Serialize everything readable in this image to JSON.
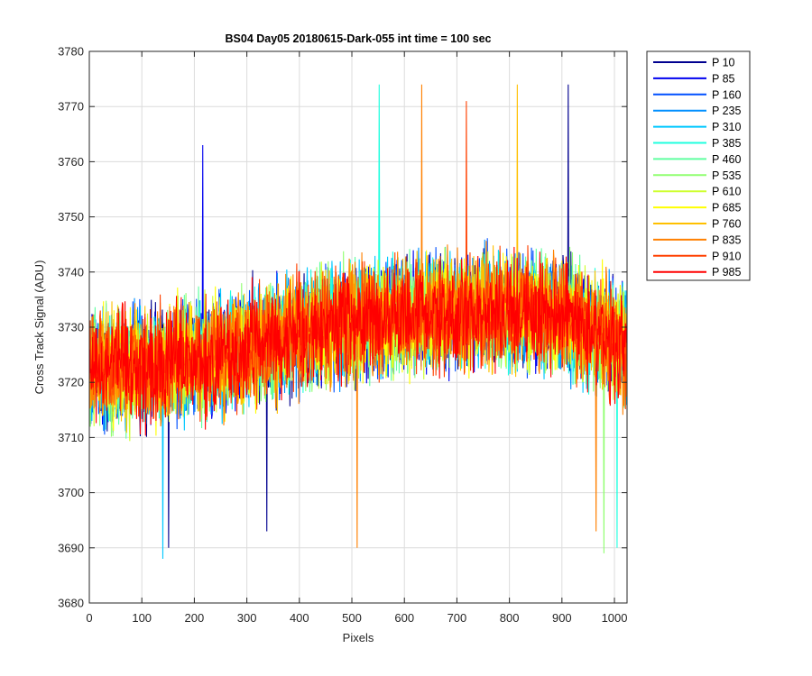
{
  "chart_data": {
    "type": "line",
    "title": "BS04 Day05 20180615-Dark-055 int time = 100 sec",
    "xlabel": "Pixels",
    "ylabel": "Cross Track Signal (ADU)",
    "xlim": [
      0,
      1024
    ],
    "ylim": [
      3680,
      3780
    ],
    "x_ticks": [
      0,
      100,
      200,
      300,
      400,
      500,
      600,
      700,
      800,
      900,
      1000
    ],
    "x_tick_labels": [
      "0",
      "100",
      "200",
      "300",
      "400",
      "500",
      "600",
      "700",
      "800",
      "900",
      "1000"
    ],
    "y_ticks": [
      3680,
      3690,
      3700,
      3710,
      3720,
      3730,
      3740,
      3750,
      3760,
      3770,
      3780
    ],
    "y_tick_labels": [
      "3680",
      "3690",
      "3700",
      "3710",
      "3720",
      "3730",
      "3740",
      "3750",
      "3760",
      "3770",
      "3780"
    ],
    "grid": true,
    "legend_position": "outside-right-top",
    "x_range": [
      1,
      1024
    ],
    "baseline_trend": [
      {
        "x": 1,
        "y": 3722
      },
      {
        "x": 100,
        "y": 3723
      },
      {
        "x": 200,
        "y": 3724
      },
      {
        "x": 300,
        "y": 3726
      },
      {
        "x": 400,
        "y": 3729
      },
      {
        "x": 500,
        "y": 3731
      },
      {
        "x": 600,
        "y": 3732
      },
      {
        "x": 700,
        "y": 3733
      },
      {
        "x": 800,
        "y": 3733
      },
      {
        "x": 900,
        "y": 3732
      },
      {
        "x": 1000,
        "y": 3728
      },
      {
        "x": 1024,
        "y": 3726
      }
    ],
    "noise_amplitude": 12,
    "series": [
      {
        "name": "P 10",
        "color": "#00008f"
      },
      {
        "name": "P 85",
        "color": "#0000ef"
      },
      {
        "name": "P 160",
        "color": "#0050ff"
      },
      {
        "name": "P 235",
        "color": "#008fff"
      },
      {
        "name": "P 310",
        "color": "#00c8ff"
      },
      {
        "name": "P 385",
        "color": "#20ffdf"
      },
      {
        "name": "P 460",
        "color": "#60ffa0"
      },
      {
        "name": "P 535",
        "color": "#90ff70"
      },
      {
        "name": "P 610",
        "color": "#cfff30"
      },
      {
        "name": "P 685",
        "color": "#ffff00"
      },
      {
        "name": "P 760",
        "color": "#ffc000"
      },
      {
        "name": "P 835",
        "color": "#ff8000"
      },
      {
        "name": "P 910",
        "color": "#ff4000"
      },
      {
        "name": "P 985",
        "color": "#ff0000"
      }
    ],
    "notable_points": [
      {
        "x": 912,
        "y": 3774,
        "series": "P 10"
      },
      {
        "x": 815,
        "y": 3774,
        "series": "P 760"
      },
      {
        "x": 633,
        "y": 3774,
        "series": "P 835"
      },
      {
        "x": 552,
        "y": 3774,
        "series": "P 385"
      },
      {
        "x": 718,
        "y": 3771,
        "series": "P 910"
      },
      {
        "x": 216,
        "y": 3763,
        "series": "P 85"
      },
      {
        "x": 151,
        "y": 3690,
        "series": "P 10"
      },
      {
        "x": 140,
        "y": 3688,
        "series": "P 310"
      },
      {
        "x": 510,
        "y": 3690,
        "series": "P 835"
      },
      {
        "x": 980,
        "y": 3689,
        "series": "P 535"
      },
      {
        "x": 1005,
        "y": 3690,
        "series": "P 385"
      },
      {
        "x": 338,
        "y": 3693,
        "series": "P 10"
      },
      {
        "x": 965,
        "y": 3693,
        "series": "P 835"
      }
    ]
  }
}
